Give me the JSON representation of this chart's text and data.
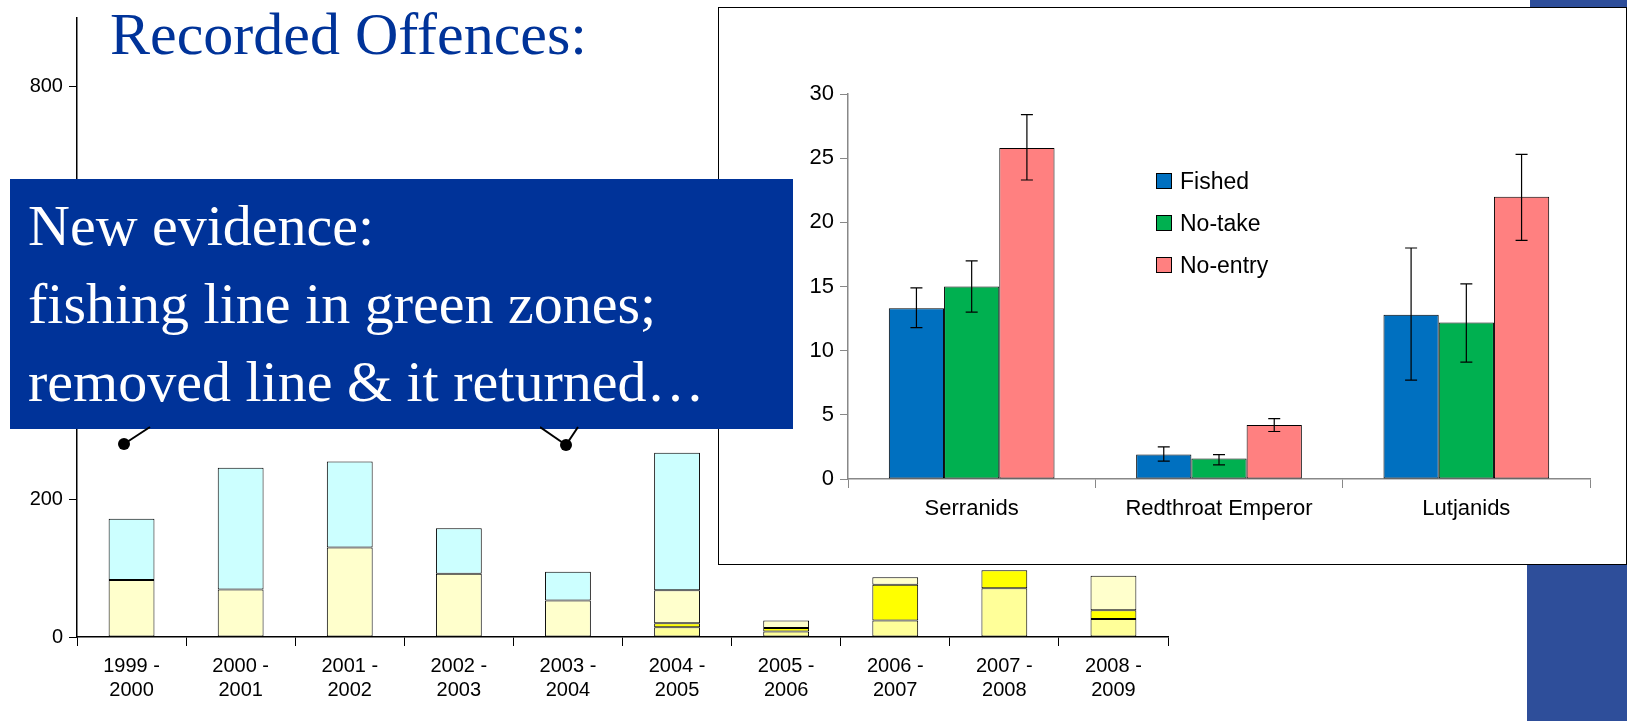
{
  "chart_data": [
    {
      "type": "bar",
      "title": "Recorded Offences:",
      "stacked": true,
      "categories": [
        "1999 - 2000",
        "2000 - 2001",
        "2001 - 2002",
        "2002 - 2003",
        "2003 - 2004",
        "2004 - 2005",
        "2005 - 2006",
        "2006 - 2007",
        "2007 - 2008",
        "2008 - 2009"
      ],
      "series": [
        {
          "color": "#ffff99",
          "values": [
            null,
            null,
            null,
            null,
            null,
            14,
            8,
            24,
            71,
            26
          ]
        },
        {
          "color": "#ffff00",
          "values": [
            null,
            null,
            null,
            null,
            null,
            6,
            5,
            52,
            26,
            13
          ]
        },
        {
          "color": "#ffffcc",
          "values": [
            83,
            69,
            130,
            92,
            53,
            48,
            11,
            11,
            null,
            50
          ]
        },
        {
          "color": "#ccffff",
          "values": [
            89,
            177,
            125,
            66,
            42,
            200,
            null,
            null,
            null,
            null
          ]
        }
      ],
      "ylim": [
        0,
        900
      ],
      "yticks": [
        0,
        200,
        800
      ],
      "annotations": [
        "New evidence:\nfishing line in green zones;\nremoved line & it returned…"
      ]
    },
    {
      "type": "bar",
      "categories": [
        "Serranids",
        "Redthroat Emperor",
        "Lutjanids"
      ],
      "series": [
        {
          "name": "Fished",
          "color": "#0070c0",
          "values": [
            13.3,
            1.9,
            12.8
          ],
          "errors": [
            [
              11.8,
              14.9
            ],
            [
              1.4,
              2.5
            ],
            [
              7.7,
              18.0
            ]
          ]
        },
        {
          "name": "No-take",
          "color": "#00b050",
          "values": [
            15.0,
            1.6,
            12.2
          ],
          "errors": [
            [
              13.0,
              17.0
            ],
            [
              1.1,
              1.9
            ],
            [
              9.1,
              15.2
            ]
          ]
        },
        {
          "name": "No-entry",
          "color": "#ff8080",
          "values": [
            25.8,
            4.2,
            22.0
          ],
          "errors": [
            [
              23.3,
              28.4
            ],
            [
              3.7,
              4.7
            ],
            [
              18.6,
              25.3
            ]
          ]
        }
      ],
      "ylim": [
        0,
        30
      ],
      "yticks": [
        0,
        5,
        10,
        15,
        20,
        25,
        30
      ],
      "legend": "top"
    }
  ]
}
